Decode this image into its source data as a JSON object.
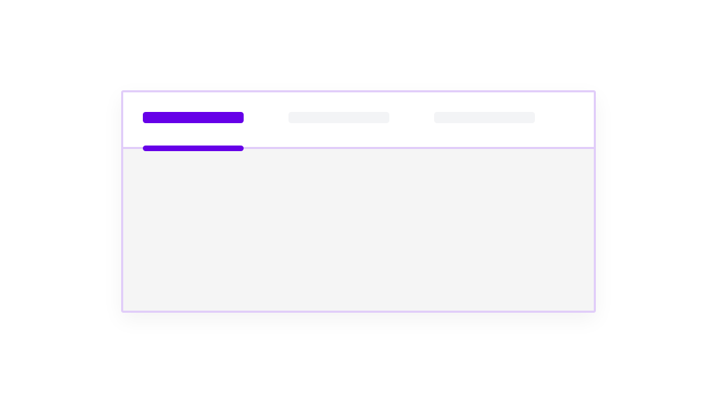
{
  "tabs": [
    {
      "state": "active"
    },
    {
      "state": "inactive"
    },
    {
      "state": "inactive"
    }
  ],
  "colors": {
    "accent": "#6600e8",
    "inactive_tab": "#f3f4f6",
    "border": "#e1cdf9",
    "panel": "#f5f5f5"
  }
}
